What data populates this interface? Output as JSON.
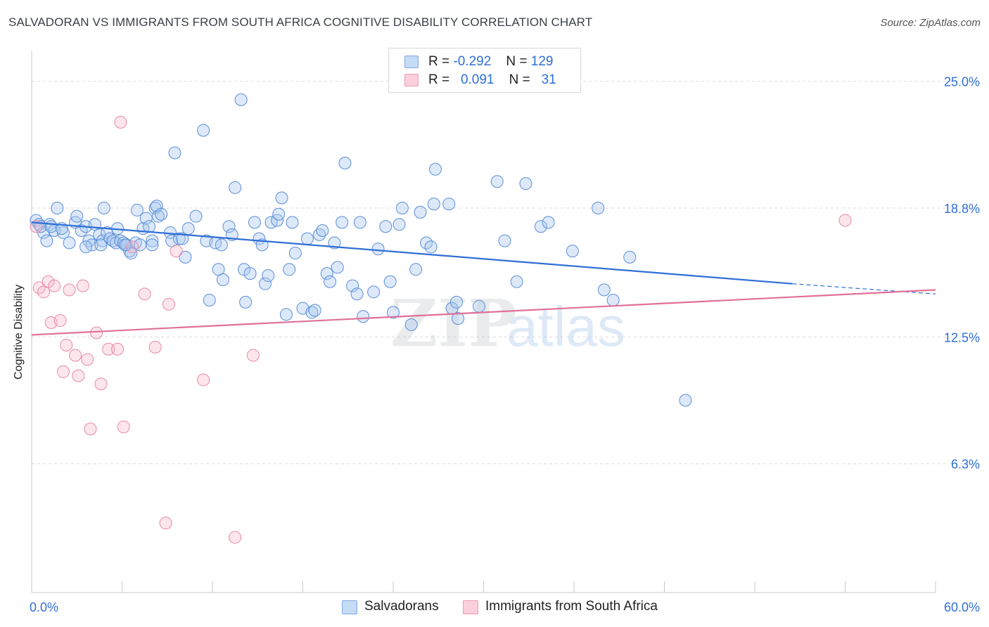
{
  "title": "SALVADORAN VS IMMIGRANTS FROM SOUTH AFRICA COGNITIVE DISABILITY CORRELATION CHART",
  "source": "Source: ZipAtlas.com",
  "watermark": {
    "zip": "ZIP",
    "atlas": "atlas"
  },
  "legend": {
    "rows": [
      {
        "r_label": "R =",
        "r_value": "-0.292",
        "n_label": "N =",
        "n_value": "129",
        "color": "#a9c8f0"
      },
      {
        "r_label": "R =",
        "r_value": "0.091",
        "n_label": "N =",
        "n_value": "31",
        "color": "#f6b6c9"
      }
    ]
  },
  "bottom_legend": [
    {
      "label": "Salvadorans",
      "color": "#a9c8f0"
    },
    {
      "label": "Immigrants from South Africa",
      "color": "#f6b6c9"
    }
  ],
  "colors": {
    "blue": "#2f6fd6",
    "pink": "#e07099",
    "blue_fill": "#a9c8f0",
    "pink_fill": "#f6b6c9"
  },
  "chart_data": {
    "type": "scatter",
    "title": "SALVADORAN VS IMMIGRANTS FROM SOUTH AFRICA COGNITIVE DISABILITY CORRELATION CHART",
    "xlabel": "",
    "ylabel": "Cognitive Disability",
    "xlim": [
      0,
      60
    ],
    "ylim": [
      0,
      26.5
    ],
    "x_tick_labels": [
      "0.0%",
      "60.0%"
    ],
    "y_ticks": [
      6.3,
      12.5,
      18.8,
      25.0
    ],
    "y_tick_labels": [
      "6.3%",
      "12.5%",
      "18.8%",
      "25.0%"
    ],
    "grid": true,
    "series": [
      {
        "name": "Salvadorans",
        "color": "#2f6fd6",
        "trend": {
          "x": [
            0,
            50.5
          ],
          "y": [
            18.1,
            15.1
          ],
          "dashed_to": [
            60,
            14.6
          ]
        },
        "points": [
          [
            0.3,
            18.2
          ],
          [
            0.5,
            18.0
          ],
          [
            0.8,
            17.6
          ],
          [
            1.0,
            17.2
          ],
          [
            1.2,
            18.0
          ],
          [
            1.5,
            17.7
          ],
          [
            1.7,
            18.8
          ],
          [
            2.1,
            17.6
          ],
          [
            2.5,
            17.1
          ],
          [
            2.9,
            18.1
          ],
          [
            3.0,
            18.4
          ],
          [
            3.3,
            17.7
          ],
          [
            3.6,
            17.9
          ],
          [
            3.8,
            17.2
          ],
          [
            4.0,
            17.0
          ],
          [
            4.2,
            18.0
          ],
          [
            4.5,
            17.5
          ],
          [
            4.7,
            17.2
          ],
          [
            4.8,
            18.8
          ],
          [
            5.0,
            17.6
          ],
          [
            5.2,
            17.3
          ],
          [
            5.4,
            17.2
          ],
          [
            5.6,
            17.1
          ],
          [
            5.7,
            17.8
          ],
          [
            5.9,
            17.2
          ],
          [
            6.1,
            17.1
          ],
          [
            6.3,
            17.0
          ],
          [
            6.5,
            16.7
          ],
          [
            6.6,
            16.6
          ],
          [
            6.9,
            17.1
          ],
          [
            7.0,
            18.7
          ],
          [
            7.2,
            17.0
          ],
          [
            7.4,
            17.8
          ],
          [
            7.6,
            18.3
          ],
          [
            7.8,
            17.9
          ],
          [
            8.0,
            17.2
          ],
          [
            8.2,
            18.8
          ],
          [
            8.3,
            18.9
          ],
          [
            8.4,
            18.4
          ],
          [
            8.6,
            18.5
          ],
          [
            9.2,
            17.6
          ],
          [
            9.3,
            17.2
          ],
          [
            9.5,
            21.5
          ],
          [
            9.8,
            17.3
          ],
          [
            10.0,
            17.3
          ],
          [
            10.2,
            16.4
          ],
          [
            10.4,
            17.8
          ],
          [
            10.9,
            18.4
          ],
          [
            11.4,
            22.6
          ],
          [
            11.6,
            17.2
          ],
          [
            11.8,
            14.3
          ],
          [
            12.2,
            17.1
          ],
          [
            12.4,
            15.8
          ],
          [
            12.7,
            15.3
          ],
          [
            13.1,
            17.9
          ],
          [
            13.3,
            17.5
          ],
          [
            13.5,
            19.8
          ],
          [
            13.9,
            24.1
          ],
          [
            14.1,
            15.8
          ],
          [
            14.2,
            14.2
          ],
          [
            14.5,
            15.6
          ],
          [
            14.8,
            18.1
          ],
          [
            15.1,
            17.3
          ],
          [
            15.3,
            17.0
          ],
          [
            15.5,
            15.1
          ],
          [
            15.7,
            15.5
          ],
          [
            15.9,
            18.1
          ],
          [
            16.3,
            18.2
          ],
          [
            16.4,
            18.5
          ],
          [
            16.6,
            19.3
          ],
          [
            16.9,
            13.6
          ],
          [
            17.1,
            15.8
          ],
          [
            17.3,
            18.1
          ],
          [
            17.5,
            16.6
          ],
          [
            18.0,
            13.9
          ],
          [
            18.3,
            17.3
          ],
          [
            18.6,
            13.7
          ],
          [
            18.8,
            13.8
          ],
          [
            19.1,
            17.5
          ],
          [
            19.3,
            17.7
          ],
          [
            19.6,
            15.6
          ],
          [
            19.8,
            15.2
          ],
          [
            20.1,
            17.1
          ],
          [
            20.3,
            15.9
          ],
          [
            20.6,
            18.1
          ],
          [
            20.8,
            21.0
          ],
          [
            21.3,
            15.0
          ],
          [
            21.8,
            18.1
          ],
          [
            21.6,
            14.6
          ],
          [
            22.0,
            13.5
          ],
          [
            22.7,
            14.7
          ],
          [
            23.0,
            16.8
          ],
          [
            23.5,
            17.9
          ],
          [
            23.8,
            15.2
          ],
          [
            24.0,
            13.7
          ],
          [
            24.4,
            18.0
          ],
          [
            24.6,
            18.8
          ],
          [
            25.2,
            13.1
          ],
          [
            25.5,
            15.8
          ],
          [
            25.8,
            18.6
          ],
          [
            26.2,
            17.1
          ],
          [
            26.5,
            16.9
          ],
          [
            26.7,
            19.0
          ],
          [
            26.8,
            20.7
          ],
          [
            27.7,
            19.0
          ],
          [
            27.9,
            13.9
          ],
          [
            28.2,
            14.2
          ],
          [
            28.3,
            13.4
          ],
          [
            29.7,
            14.0
          ],
          [
            30.9,
            20.1
          ],
          [
            31.4,
            17.2
          ],
          [
            32.2,
            15.2
          ],
          [
            32.8,
            20.0
          ],
          [
            33.8,
            17.9
          ],
          [
            34.3,
            18.1
          ],
          [
            35.9,
            16.7
          ],
          [
            37.6,
            18.8
          ],
          [
            38.0,
            14.8
          ],
          [
            38.6,
            14.3
          ],
          [
            39.7,
            16.4
          ],
          [
            43.4,
            9.4
          ],
          [
            0.6,
            17.9
          ],
          [
            1.3,
            17.9
          ],
          [
            2.0,
            17.8
          ],
          [
            3.6,
            16.9
          ],
          [
            4.6,
            17.0
          ],
          [
            6.2,
            17.0
          ],
          [
            8.0,
            17.0
          ],
          [
            12.6,
            17.0
          ]
        ]
      },
      {
        "name": "Immigrants from South Africa",
        "color": "#e07099",
        "trend": {
          "x": [
            0,
            60
          ],
          "y": [
            12.6,
            14.8
          ]
        },
        "points": [
          [
            0.3,
            17.9
          ],
          [
            0.5,
            14.9
          ],
          [
            0.8,
            14.7
          ],
          [
            1.1,
            15.2
          ],
          [
            1.3,
            13.2
          ],
          [
            1.5,
            15.0
          ],
          [
            1.9,
            13.3
          ],
          [
            2.1,
            10.8
          ],
          [
            2.3,
            12.1
          ],
          [
            2.5,
            14.8
          ],
          [
            2.9,
            11.6
          ],
          [
            3.1,
            10.6
          ],
          [
            3.4,
            15.0
          ],
          [
            3.7,
            11.4
          ],
          [
            3.9,
            8.0
          ],
          [
            4.3,
            12.7
          ],
          [
            4.6,
            10.2
          ],
          [
            5.1,
            11.9
          ],
          [
            5.7,
            11.9
          ],
          [
            5.9,
            23.0
          ],
          [
            6.1,
            8.1
          ],
          [
            6.7,
            16.9
          ],
          [
            7.5,
            14.6
          ],
          [
            8.2,
            12.0
          ],
          [
            8.9,
            3.4
          ],
          [
            9.1,
            14.1
          ],
          [
            9.6,
            16.7
          ],
          [
            11.4,
            10.4
          ],
          [
            13.5,
            2.7
          ],
          [
            14.7,
            11.6
          ],
          [
            54.0,
            18.2
          ]
        ]
      }
    ]
  }
}
